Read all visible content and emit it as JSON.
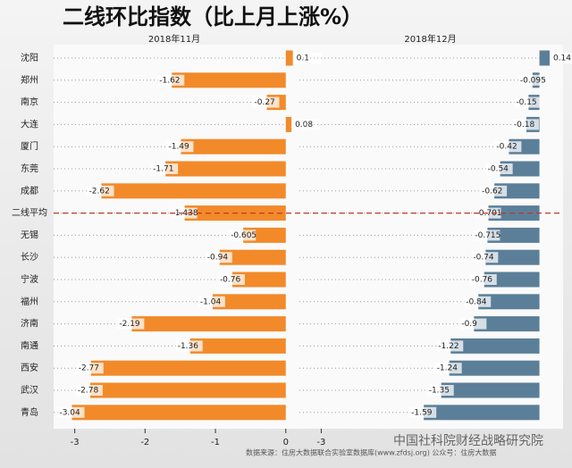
{
  "title": "二线环比指数（比上月上涨%）",
  "source": "数据来源：住房大数据联合实验室数据库(www.zfdsj.org) 公众号：住房大数据",
  "watermark": "中国社科院财经战略研究院",
  "chart_data": [
    {
      "type": "bar",
      "orientation": "horizontal",
      "subtitle": "2018年11月",
      "color": "#f28a2a",
      "categories": [
        "沈阳",
        "郑州",
        "南京",
        "大连",
        "厦门",
        "东莞",
        "成都",
        "二线平均",
        "无锡",
        "长沙",
        "宁波",
        "福州",
        "济南",
        "南通",
        "西安",
        "武汉",
        "青岛"
      ],
      "values": [
        0.1,
        -1.62,
        -0.27,
        0.08,
        -1.49,
        -1.71,
        -2.62,
        -1.438,
        -0.605,
        -0.94,
        -0.76,
        -1.04,
        -2.19,
        -1.36,
        -2.77,
        -2.78,
        -3.04
      ],
      "xlim": [
        -3.3,
        0.13
      ],
      "xticks": [
        -3,
        -2,
        -1,
        0
      ]
    },
    {
      "type": "bar",
      "orientation": "horizontal",
      "subtitle": "2018年12月",
      "color": "#5b7f99",
      "values": [
        0.14,
        -0.095,
        -0.15,
        -0.18,
        -0.42,
        -0.54,
        -0.62,
        -0.701,
        -0.715,
        -0.74,
        -0.76,
        -0.84,
        -0.9,
        -1.22,
        -1.24,
        -1.35,
        -1.59
      ],
      "xlim": [
        -3.3,
        0.3
      ],
      "xticks": [
        -3
      ]
    }
  ]
}
